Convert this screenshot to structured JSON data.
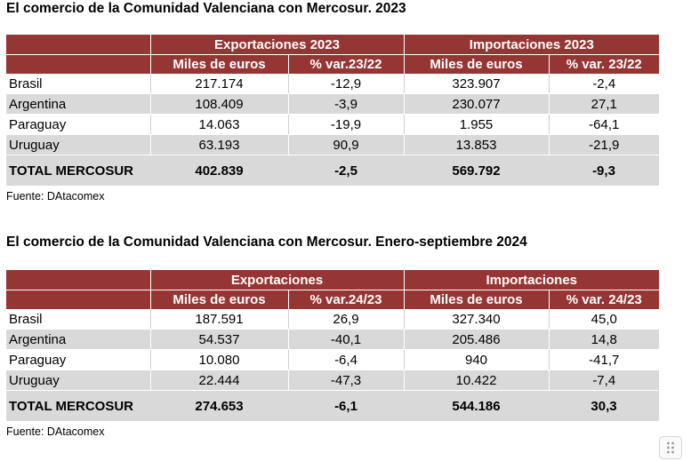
{
  "tables": [
    {
      "title": "El comercio de la Comunidad Valenciana con Mercosur. 2023",
      "group_headers": [
        "Exportaciones 2023",
        "Importaciones 2023"
      ],
      "sub_headers": [
        "Miles de euros",
        "% var.23/22",
        "Miles de euros",
        "% var. 23/22"
      ],
      "rows": [
        [
          "Brasil",
          "217.174",
          "-12,9",
          "323.907",
          "-2,4"
        ],
        [
          "Argentina",
          "108.409",
          "-3,9",
          "230.077",
          "27,1"
        ],
        [
          "Paraguay",
          "14.063",
          "-19,9",
          "1.955",
          "-64,1"
        ],
        [
          "Uruguay",
          "63.193",
          "90,9",
          "13.853",
          "-21,9"
        ]
      ],
      "total": [
        "TOTAL MERCOSUR",
        "402.839",
        "-2,5",
        "569.792",
        "-9,3"
      ],
      "source": "Fuente: DAtacomex"
    },
    {
      "title": "El comercio de la Comunidad Valenciana con Mercosur. Enero-septiembre 2024",
      "group_headers": [
        "Exportaciones",
        "Importaciones"
      ],
      "sub_headers": [
        "Miles de euros",
        "% var.24/23",
        "Miles de euros",
        "% var. 24/23"
      ],
      "rows": [
        [
          "Brasil",
          "187.591",
          "26,9",
          "327.340",
          "45,0"
        ],
        [
          "Argentina",
          "54.537",
          "-40,1",
          "205.486",
          "14,8"
        ],
        [
          "Paraguay",
          "10.080",
          "-6,4",
          "940",
          "-41,7"
        ],
        [
          "Uruguay",
          "22.444",
          "-47,3",
          "10.422",
          "-7,4"
        ]
      ],
      "total": [
        "TOTAL MERCOSUR",
        "274.653",
        "-6,1",
        "544.186",
        "30,3"
      ],
      "source": "Fuente: DAtacomex"
    }
  ],
  "icons": {
    "corner_handle": "drag-handle-icon"
  },
  "colors": {
    "header": "#963634",
    "band": "#d9d9d9"
  }
}
